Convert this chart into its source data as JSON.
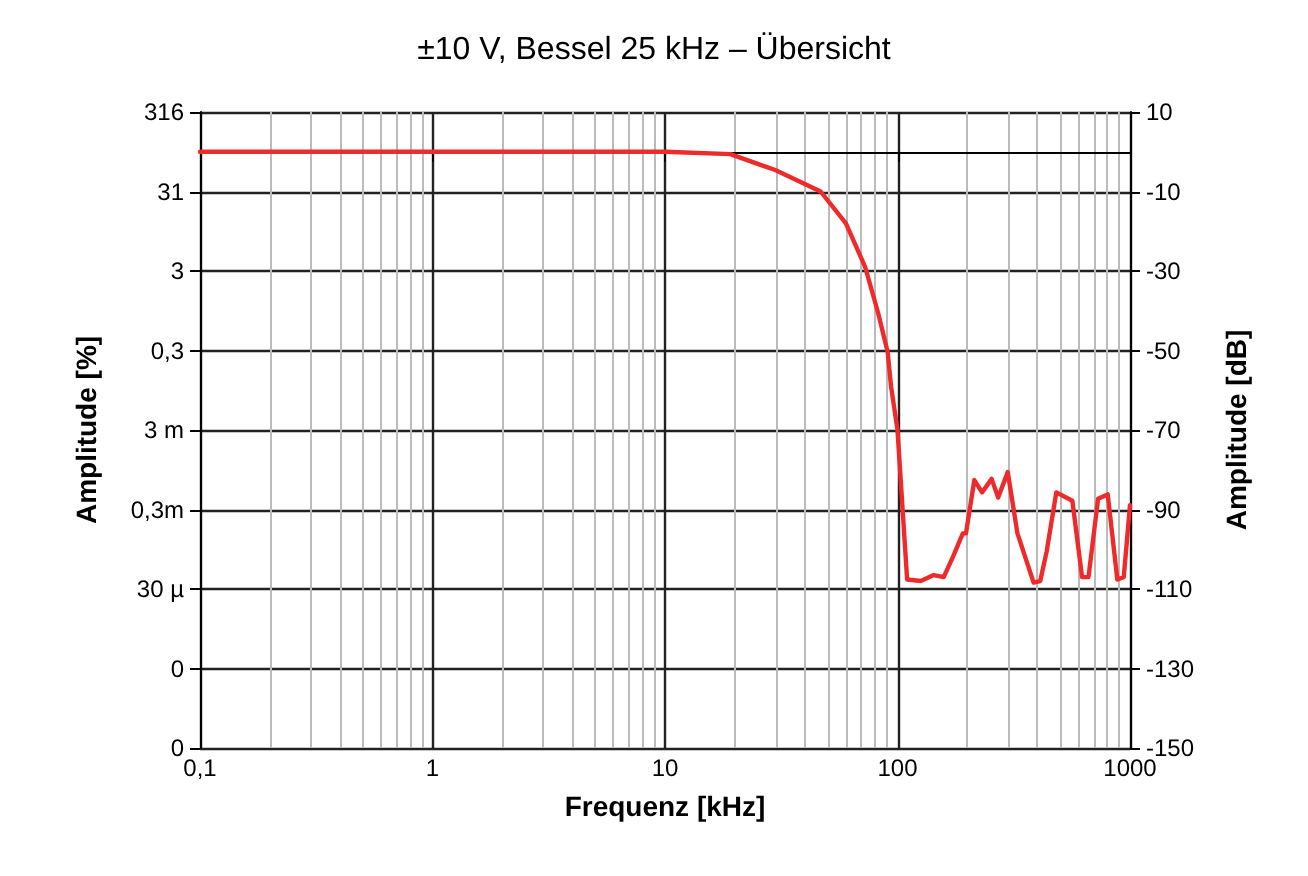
{
  "chart_data": {
    "type": "line",
    "title": "±10 V, Bessel 25 kHz – Übersicht",
    "xlabel": "Frequenz [kHz]",
    "ylabel": "Amplitude [dB]",
    "y2label": "Amplitude [%]",
    "log": "x",
    "grid": true,
    "marker": "none",
    "line_style": "solid",
    "xlim": [
      0.1,
      1000
    ],
    "xticks": [
      {
        "value": 0.1,
        "label": "0,1"
      },
      1,
      10,
      100,
      1000
    ],
    "ylim": [
      -150,
      10
    ],
    "yticks": [
      -150,
      -130,
      -110,
      -90,
      -70,
      -50,
      -30,
      -10,
      10
    ],
    "y2_categories": [
      "316",
      "31",
      "3",
      "0,3",
      "3 m",
      "0,3m",
      "30 µ",
      "0",
      "0"
    ],
    "series": [
      {
        "color": "#ee2a2a",
        "x": [
          0.1,
          1,
          10,
          19.1,
          29.8,
          46.7,
          60,
          72.6,
          82.5,
          90.7,
          93.8,
          100,
          110,
          126,
          143,
          158,
          173,
          191,
          197,
          214,
          231,
          254,
          271,
          298,
          328,
          385,
          411,
          438,
          482,
          565,
          622,
          663,
          729,
          802,
          882,
          940,
          1000
        ],
        "values": [
          0,
          0,
          0,
          -0.6,
          -4.6,
          -10,
          -18,
          -29,
          -40.5,
          -50.4,
          -59,
          -70,
          -107.6,
          -108,
          -106.5,
          -107,
          -102,
          -96,
          -96,
          -82.6,
          -85.7,
          -82.3,
          -87,
          -80.6,
          -96,
          -108.4,
          -108,
          -100.6,
          -85.7,
          -87.8,
          -107,
          -107,
          -87.3,
          -86.2,
          -107.6,
          -107,
          -88.9
        ]
      }
    ]
  }
}
